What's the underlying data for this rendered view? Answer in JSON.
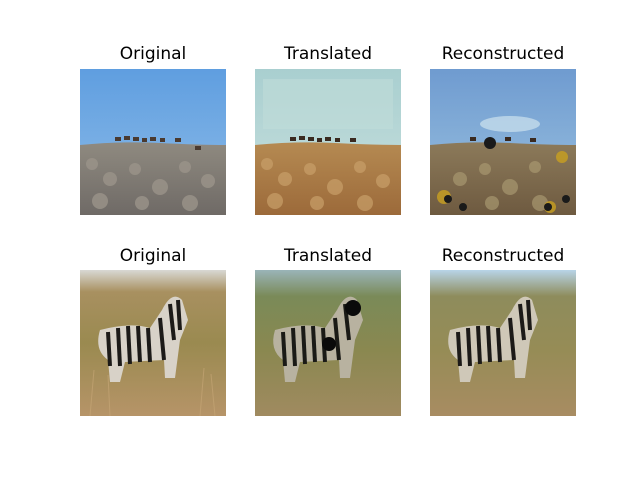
{
  "rows": [
    {
      "titles": [
        "Original",
        "Translated",
        "Reconstructed"
      ]
    },
    {
      "titles": [
        "Original",
        "Translated",
        "Reconstructed"
      ]
    }
  ]
}
